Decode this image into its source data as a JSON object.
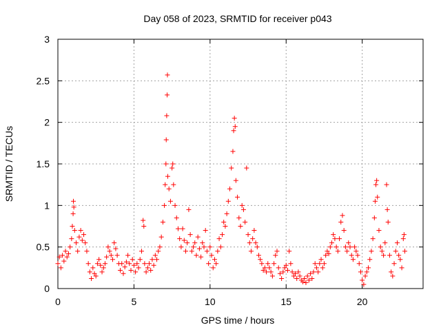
{
  "chart_data": {
    "type": "scatter",
    "title": "Day 058 of 2023, SRMTID for receiver p043",
    "xlabel": "GPS time / hours",
    "ylabel": "SRMTID / TECUs",
    "xlim": [
      0,
      24
    ],
    "ylim": [
      0,
      3
    ],
    "xticks": [
      0,
      5,
      10,
      15,
      20
    ],
    "yticks": [
      0,
      0.5,
      1,
      1.5,
      2,
      2.5,
      3
    ],
    "xtick_labels": [
      "0",
      "5",
      "10",
      "15",
      "20"
    ],
    "ytick_labels": [
      "0",
      "0.5",
      "1",
      "1.5",
      "2",
      "2.5",
      "3"
    ],
    "grid": true,
    "marker": "plus",
    "series": [
      {
        "name": "SRMTID",
        "color": "#ff0000",
        "note": "representative sample of the dense point cloud",
        "points": [
          [
            0.0,
            0.3
          ],
          [
            0.1,
            0.38
          ],
          [
            0.2,
            0.25
          ],
          [
            0.3,
            0.4
          ],
          [
            0.4,
            0.33
          ],
          [
            0.5,
            0.45
          ],
          [
            0.6,
            0.38
          ],
          [
            0.7,
            0.42
          ],
          [
            0.8,
            0.5
          ],
          [
            0.9,
            0.6
          ],
          [
            0.95,
            0.75
          ],
          [
            1.0,
            0.9
          ],
          [
            1.02,
            1.05
          ],
          [
            1.05,
            0.98
          ],
          [
            1.1,
            0.7
          ],
          [
            1.2,
            0.55
          ],
          [
            1.3,
            0.45
          ],
          [
            1.4,
            0.62
          ],
          [
            1.5,
            0.7
          ],
          [
            1.6,
            0.58
          ],
          [
            1.7,
            0.65
          ],
          [
            1.8,
            0.55
          ],
          [
            1.9,
            0.45
          ],
          [
            2.0,
            0.3
          ],
          [
            2.1,
            0.2
          ],
          [
            2.2,
            0.12
          ],
          [
            2.3,
            0.25
          ],
          [
            2.4,
            0.18
          ],
          [
            2.5,
            0.15
          ],
          [
            2.6,
            0.3
          ],
          [
            2.7,
            0.35
          ],
          [
            2.8,
            0.28
          ],
          [
            2.9,
            0.2
          ],
          [
            3.0,
            0.25
          ],
          [
            3.1,
            0.3
          ],
          [
            3.2,
            0.38
          ],
          [
            3.3,
            0.5
          ],
          [
            3.4,
            0.45
          ],
          [
            3.5,
            0.4
          ],
          [
            3.6,
            0.35
          ],
          [
            3.7,
            0.55
          ],
          [
            3.8,
            0.48
          ],
          [
            3.9,
            0.4
          ],
          [
            4.0,
            0.3
          ],
          [
            4.1,
            0.22
          ],
          [
            4.2,
            0.3
          ],
          [
            4.3,
            0.18
          ],
          [
            4.4,
            0.26
          ],
          [
            4.5,
            0.32
          ],
          [
            4.6,
            0.4
          ],
          [
            4.7,
            0.3
          ],
          [
            4.8,
            0.22
          ],
          [
            4.9,
            0.35
          ],
          [
            5.0,
            0.28
          ],
          [
            5.1,
            0.2
          ],
          [
            5.2,
            0.3
          ],
          [
            5.3,
            0.25
          ],
          [
            5.4,
            0.35
          ],
          [
            5.5,
            0.45
          ],
          [
            5.6,
            0.82
          ],
          [
            5.65,
            0.75
          ],
          [
            5.7,
            0.3
          ],
          [
            5.8,
            0.2
          ],
          [
            5.9,
            0.25
          ],
          [
            6.0,
            0.3
          ],
          [
            6.1,
            0.22
          ],
          [
            6.2,
            0.35
          ],
          [
            6.3,
            0.28
          ],
          [
            6.4,
            0.4
          ],
          [
            6.5,
            0.35
          ],
          [
            6.6,
            0.45
          ],
          [
            6.7,
            0.5
          ],
          [
            6.8,
            0.62
          ],
          [
            6.9,
            0.8
          ],
          [
            7.0,
            1.0
          ],
          [
            7.05,
            1.25
          ],
          [
            7.1,
            1.5
          ],
          [
            7.12,
            1.79
          ],
          [
            7.15,
            2.08
          ],
          [
            7.18,
            2.33
          ],
          [
            7.2,
            2.57
          ],
          [
            7.22,
            1.35
          ],
          [
            7.3,
            1.2
          ],
          [
            7.4,
            1.05
          ],
          [
            7.5,
            1.45
          ],
          [
            7.55,
            1.5
          ],
          [
            7.6,
            1.25
          ],
          [
            7.7,
            1.0
          ],
          [
            7.8,
            0.85
          ],
          [
            7.9,
            0.72
          ],
          [
            8.0,
            0.6
          ],
          [
            8.1,
            0.5
          ],
          [
            8.2,
            0.72
          ],
          [
            8.3,
            0.58
          ],
          [
            8.4,
            0.45
          ],
          [
            8.5,
            0.55
          ],
          [
            8.6,
            0.95
          ],
          [
            8.7,
            0.65
          ],
          [
            8.8,
            0.45
          ],
          [
            8.9,
            0.5
          ],
          [
            9.0,
            0.55
          ],
          [
            9.1,
            0.4
          ],
          [
            9.2,
            0.62
          ],
          [
            9.3,
            0.48
          ],
          [
            9.4,
            0.38
          ],
          [
            9.5,
            0.55
          ],
          [
            9.6,
            0.5
          ],
          [
            9.7,
            0.7
          ],
          [
            9.8,
            0.45
          ],
          [
            9.9,
            0.3
          ],
          [
            10.0,
            0.5
          ],
          [
            10.1,
            0.4
          ],
          [
            10.2,
            0.25
          ],
          [
            10.3,
            0.35
          ],
          [
            10.4,
            0.3
          ],
          [
            10.5,
            0.45
          ],
          [
            10.6,
            0.6
          ],
          [
            10.7,
            0.5
          ],
          [
            10.8,
            0.65
          ],
          [
            10.9,
            0.8
          ],
          [
            11.0,
            0.75
          ],
          [
            11.1,
            0.9
          ],
          [
            11.2,
            1.05
          ],
          [
            11.3,
            1.2
          ],
          [
            11.4,
            1.45
          ],
          [
            11.5,
            1.65
          ],
          [
            11.55,
            1.9
          ],
          [
            11.6,
            2.05
          ],
          [
            11.65,
            1.95
          ],
          [
            11.7,
            1.3
          ],
          [
            11.8,
            1.1
          ],
          [
            11.9,
            0.85
          ],
          [
            12.0,
            0.75
          ],
          [
            12.1,
            1.0
          ],
          [
            12.2,
            0.95
          ],
          [
            12.3,
            0.8
          ],
          [
            12.4,
            1.45
          ],
          [
            12.5,
            0.65
          ],
          [
            12.6,
            0.55
          ],
          [
            12.7,
            0.45
          ],
          [
            12.8,
            0.6
          ],
          [
            12.9,
            0.7
          ],
          [
            13.0,
            0.55
          ],
          [
            13.1,
            0.5
          ],
          [
            13.2,
            0.4
          ],
          [
            13.3,
            0.35
          ],
          [
            13.4,
            0.3
          ],
          [
            13.5,
            0.22
          ],
          [
            13.6,
            0.25
          ],
          [
            13.7,
            0.2
          ],
          [
            13.8,
            0.3
          ],
          [
            13.9,
            0.25
          ],
          [
            14.0,
            0.2
          ],
          [
            14.1,
            0.15
          ],
          [
            14.2,
            0.3
          ],
          [
            14.3,
            0.4
          ],
          [
            14.4,
            0.45
          ],
          [
            14.5,
            0.25
          ],
          [
            14.6,
            0.18
          ],
          [
            14.7,
            0.12
          ],
          [
            14.8,
            0.2
          ],
          [
            14.9,
            0.25
          ],
          [
            15.0,
            0.28
          ],
          [
            15.1,
            0.22
          ],
          [
            15.2,
            0.45
          ],
          [
            15.3,
            0.3
          ],
          [
            15.4,
            0.2
          ],
          [
            15.5,
            0.15
          ],
          [
            15.6,
            0.18
          ],
          [
            15.7,
            0.12
          ],
          [
            15.8,
            0.2
          ],
          [
            15.9,
            0.15
          ],
          [
            16.0,
            0.1
          ],
          [
            16.1,
            0.08
          ],
          [
            16.2,
            0.12
          ],
          [
            16.3,
            0.07
          ],
          [
            16.4,
            0.15
          ],
          [
            16.5,
            0.1
          ],
          [
            16.6,
            0.18
          ],
          [
            16.7,
            0.12
          ],
          [
            16.8,
            0.2
          ],
          [
            16.9,
            0.3
          ],
          [
            17.0,
            0.25
          ],
          [
            17.1,
            0.2
          ],
          [
            17.2,
            0.3
          ],
          [
            17.3,
            0.35
          ],
          [
            17.4,
            0.25
          ],
          [
            17.5,
            0.3
          ],
          [
            17.6,
            0.4
          ],
          [
            17.7,
            0.45
          ],
          [
            17.8,
            0.42
          ],
          [
            17.9,
            0.5
          ],
          [
            18.0,
            0.55
          ],
          [
            18.1,
            0.65
          ],
          [
            18.2,
            0.6
          ],
          [
            18.3,
            0.5
          ],
          [
            18.4,
            0.45
          ],
          [
            18.5,
            0.6
          ],
          [
            18.6,
            0.8
          ],
          [
            18.7,
            0.88
          ],
          [
            18.8,
            0.7
          ],
          [
            18.9,
            0.5
          ],
          [
            19.0,
            0.45
          ],
          [
            19.1,
            0.55
          ],
          [
            19.2,
            0.5
          ],
          [
            19.3,
            0.4
          ],
          [
            19.4,
            0.35
          ],
          [
            19.5,
            0.5
          ],
          [
            19.6,
            0.45
          ],
          [
            19.7,
            0.4
          ],
          [
            19.8,
            0.3
          ],
          [
            19.9,
            0.2
          ],
          [
            20.0,
            0.1
          ],
          [
            20.1,
            0.05
          ],
          [
            20.2,
            0.15
          ],
          [
            20.3,
            0.2
          ],
          [
            20.4,
            0.25
          ],
          [
            20.5,
            0.35
          ],
          [
            20.6,
            0.45
          ],
          [
            20.7,
            0.6
          ],
          [
            20.8,
            0.85
          ],
          [
            20.85,
            1.05
          ],
          [
            20.9,
            1.25
          ],
          [
            20.95,
            1.3
          ],
          [
            21.0,
            1.1
          ],
          [
            21.1,
            0.7
          ],
          [
            21.2,
            0.5
          ],
          [
            21.3,
            0.45
          ],
          [
            21.4,
            0.4
          ],
          [
            21.5,
            0.55
          ],
          [
            21.6,
            1.25
          ],
          [
            21.65,
            0.95
          ],
          [
            21.7,
            0.8
          ],
          [
            21.8,
            0.4
          ],
          [
            21.9,
            0.2
          ],
          [
            22.0,
            0.15
          ],
          [
            22.1,
            0.3
          ],
          [
            22.2,
            0.45
          ],
          [
            22.3,
            0.55
          ],
          [
            22.4,
            0.4
          ],
          [
            22.5,
            0.35
          ],
          [
            22.6,
            0.25
          ],
          [
            22.7,
            0.6
          ],
          [
            22.75,
            0.65
          ],
          [
            22.8,
            0.45
          ]
        ]
      }
    ]
  }
}
